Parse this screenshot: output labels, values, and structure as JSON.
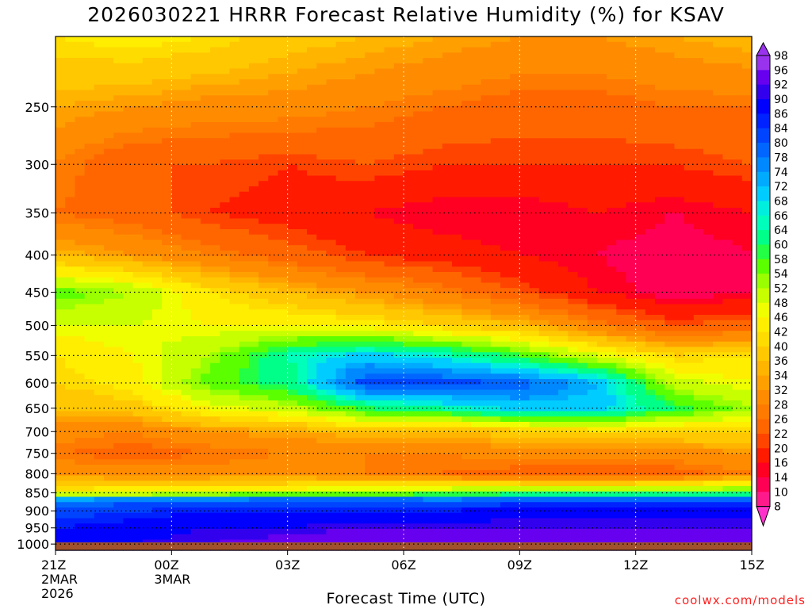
{
  "chart_data": {
    "type": "heatmap",
    "title": "2026030221 HRRR Forecast Relative Humidity (%) for KSAV",
    "xlabel": "Forecast Time (UTC)",
    "ylabel": "",
    "y_ticks": [
      250,
      300,
      350,
      400,
      450,
      500,
      550,
      600,
      650,
      700,
      750,
      800,
      850,
      900,
      950,
      1000
    ],
    "x_ticks": [
      {
        "hour": 0,
        "lines": [
          "21Z",
          "2MAR",
          "2026"
        ]
      },
      {
        "hour": 3,
        "lines": [
          "00Z",
          "3MAR"
        ]
      },
      {
        "hour": 6,
        "lines": [
          "03Z"
        ]
      },
      {
        "hour": 9,
        "lines": [
          "06Z"
        ]
      },
      {
        "hour": 12,
        "lines": [
          "09Z"
        ]
      },
      {
        "hour": 15,
        "lines": [
          "12Z"
        ]
      },
      {
        "hour": 18,
        "lines": [
          "15Z"
        ]
      }
    ],
    "xlim": [
      0,
      18
    ],
    "colorbar_levels": [
      8,
      10,
      14,
      16,
      20,
      22,
      26,
      28,
      32,
      34,
      36,
      40,
      42,
      46,
      48,
      52,
      54,
      58,
      60,
      64,
      66,
      68,
      72,
      74,
      78,
      80,
      84,
      86,
      90,
      92,
      96,
      98
    ],
    "colorbar_colors": [
      "#ff33cc",
      "#ff1a8c",
      "#ff0055",
      "#ff0022",
      "#ff1a00",
      "#ff4400",
      "#ff6600",
      "#ff7a00",
      "#ff8c00",
      "#ffa000",
      "#ffb400",
      "#ffc800",
      "#ffdc00",
      "#ffee00",
      "#f0ff00",
      "#c8ff00",
      "#9aff00",
      "#5cff00",
      "#22ff44",
      "#00ff88",
      "#00ffbb",
      "#00eedd",
      "#00ccff",
      "#00aaff",
      "#0088ff",
      "#0066ff",
      "#0044ff",
      "#0022ff",
      "#0000ff",
      "#3300ee",
      "#6600ee",
      "#9933ee"
    ],
    "profile_pressures": [
      200,
      250,
      300,
      350,
      400,
      450,
      500,
      550,
      600,
      650,
      700,
      750,
      800,
      850,
      870,
      900,
      950,
      1000,
      1020
    ],
    "profile_hours": [
      0,
      2,
      4,
      6,
      8,
      10,
      12,
      14,
      16,
      18
    ],
    "rh_profiles": [
      [
        42,
        34,
        28,
        26,
        36,
        56,
        48,
        42,
        40,
        36,
        30,
        26,
        32,
        44,
        76,
        82,
        86,
        88,
        88
      ],
      [
        44,
        32,
        22,
        24,
        32,
        52,
        48,
        46,
        44,
        38,
        28,
        24,
        30,
        46,
        78,
        84,
        88,
        90,
        88
      ],
      [
        42,
        30,
        22,
        20,
        28,
        42,
        46,
        52,
        56,
        46,
        32,
        26,
        30,
        48,
        80,
        86,
        90,
        92,
        90
      ],
      [
        38,
        30,
        20,
        18,
        24,
        36,
        46,
        64,
        62,
        50,
        34,
        28,
        30,
        50,
        82,
        86,
        90,
        94,
        92
      ],
      [
        36,
        28,
        22,
        16,
        20,
        32,
        44,
        70,
        82,
        60,
        36,
        28,
        28,
        52,
        82,
        86,
        92,
        96,
        94
      ],
      [
        34,
        26,
        20,
        14,
        18,
        28,
        40,
        66,
        82,
        64,
        36,
        28,
        26,
        54,
        80,
        86,
        92,
        96,
        94
      ],
      [
        32,
        24,
        20,
        14,
        16,
        22,
        36,
        58,
        80,
        70,
        38,
        30,
        24,
        56,
        82,
        88,
        92,
        96,
        94
      ],
      [
        32,
        24,
        20,
        16,
        14,
        16,
        28,
        48,
        72,
        70,
        40,
        30,
        22,
        56,
        82,
        88,
        92,
        96,
        94
      ],
      [
        34,
        26,
        20,
        14,
        12,
        12,
        22,
        40,
        50,
        60,
        40,
        30,
        24,
        58,
        82,
        88,
        92,
        96,
        94
      ],
      [
        36,
        26,
        22,
        16,
        14,
        14,
        24,
        42,
        46,
        52,
        40,
        32,
        28,
        60,
        82,
        88,
        92,
        96,
        94
      ]
    ]
  },
  "credit": "coolwx.com/models"
}
